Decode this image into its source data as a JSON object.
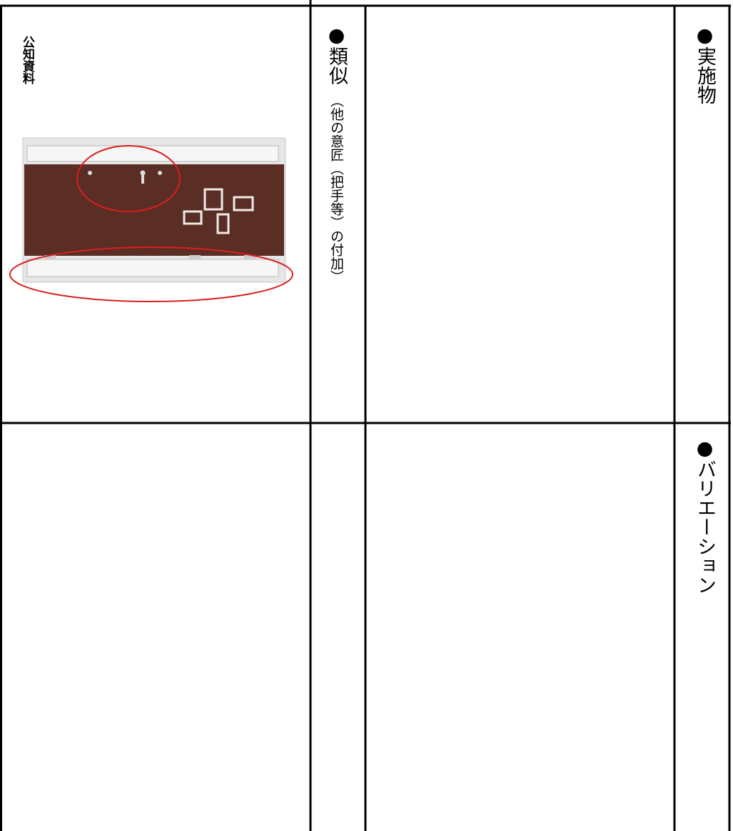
{
  "cells": {
    "prior_art_label": "公知資料",
    "similar_heading": "●類似",
    "similar_note": "（他の意匠（把手等）の付加）",
    "embodiment_heading": "●実施物",
    "variation_heading": "●バリエーション"
  }
}
